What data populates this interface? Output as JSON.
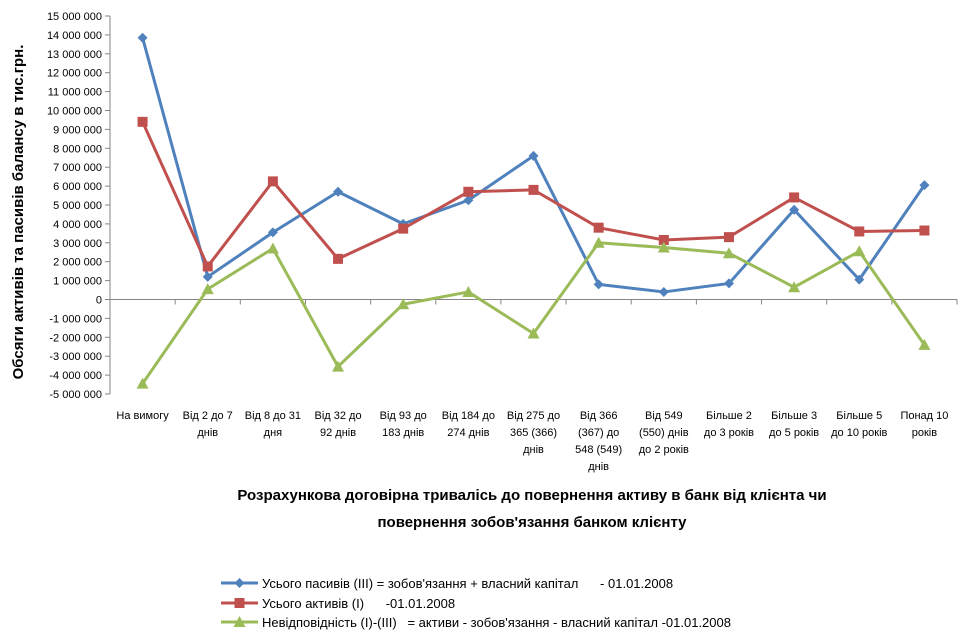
{
  "chart_data": {
    "type": "line",
    "ylabel": "Обсяги активів та пасивів балансу в тис.грн.",
    "xlabel_lines": [
      "Розрахункова договірна тривалісь до повернення активу в банк від клієнта чи",
      "повернення зобов'язання банком клієнту"
    ],
    "ylim": [
      -5000000,
      15000000
    ],
    "y_tick_step": 1000000,
    "y_tick_labels": [
      "15 000 000",
      "14 000 000",
      "13 000 000",
      "12 000 000",
      "11 000 000",
      "10 000 000",
      "9 000 000",
      "8 000 000",
      "7 000 000",
      "6 000 000",
      "5 000 000",
      "4 000 000",
      "3 000 000",
      "2 000 000",
      "1 000 000",
      "0",
      "-1 000 000",
      "-2 000 000",
      "-3 000 000",
      "-4 000 000",
      "-5 000 000"
    ],
    "grid": "none",
    "legend_position": "bottom",
    "categories": [
      [
        "На вимогу"
      ],
      [
        "Від 2 до 7",
        "днів"
      ],
      [
        "Від 8 до 31",
        "дня"
      ],
      [
        "Від 32 до",
        "92 днів"
      ],
      [
        "Від 93 до",
        "183 днів"
      ],
      [
        "Від 184 до",
        "274 днів"
      ],
      [
        "Від 275 до",
        "365 (366)",
        "днів"
      ],
      [
        "Від 366",
        "(367) до",
        "548 (549)",
        "днів"
      ],
      [
        "Від 549",
        "(550) днів",
        "до 2 років"
      ],
      [
        "Більше 2",
        "до 3 років"
      ],
      [
        "Більше 3",
        "до 5 років"
      ],
      [
        "Більше 5",
        "до 10 років"
      ],
      [
        "Понад 10",
        "років"
      ]
    ],
    "series": [
      {
        "name": "Усього пасивів (ІІІ) = зобов'язання + власний капітал      - 01.01.2008",
        "color": "#4F81BD",
        "marker": "diamond",
        "values": [
          13850000,
          1200000,
          3550000,
          5700000,
          4000000,
          5250000,
          7600000,
          800000,
          400000,
          850000,
          4750000,
          1050000,
          6050000
        ]
      },
      {
        "name": "Усього активів (І)      -01.01.2008",
        "color": "#C0504D",
        "marker": "square",
        "values": [
          9400000,
          1750000,
          6250000,
          2150000,
          3750000,
          5700000,
          5800000,
          3800000,
          3150000,
          3300000,
          5400000,
          3600000,
          3650000
        ]
      },
      {
        "name": "Невідповідність (І)-(ІІІ)   = активи - зобов'язання - власний капітал -01.01.2008",
        "color": "#9BBB59",
        "marker": "triangle",
        "values": [
          -4450000,
          550000,
          2700000,
          -3550000,
          -250000,
          400000,
          -1800000,
          3000000,
          2750000,
          2450000,
          650000,
          2550000,
          -2400000
        ]
      }
    ]
  }
}
